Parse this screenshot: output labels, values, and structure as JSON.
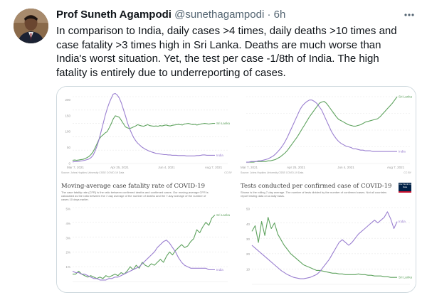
{
  "tweet": {
    "author_name": "Prof Suneth Agampodi",
    "handle": "@sunethagampodi",
    "separator": "·",
    "time": "6h",
    "more_icon": "more-horizontal-icon",
    "text": "In comparison to India, daily cases >4 times, daily deaths >10 times and case fatality >3 times high in Sri Lanka. Deaths are much worse than India's worst situation. Yet, the test per case -1/8th of India. The high fatality is entirely due to underreporting of cases."
  },
  "colors": {
    "sri_lanka": "#5fa35f",
    "india": "#9a7fd0",
    "grid": "#e8e8e8",
    "border": "#cfd9de",
    "secondary_text": "#536471"
  },
  "chart_data": [
    {
      "type": "line",
      "title": "",
      "x_ticks": [
        "Mar 7, 2021",
        "Apr 25, 2021",
        "Jun 4, 2021",
        "Aug 7, 2021"
      ],
      "y_ticks": [
        0,
        50,
        100,
        150,
        200
      ],
      "ylim": [
        0,
        210
      ],
      "source": "Source: Johns Hopkins University CSSE COVID-19 Data",
      "license": "CC BY",
      "grid": true,
      "series": [
        {
          "name": "Sri Lanka",
          "values": [
            10,
            11,
            10,
            11,
            12,
            13,
            15,
            18,
            22,
            28,
            36,
            48,
            62,
            76,
            85,
            90,
            96,
            100,
            112,
            125,
            140,
            150,
            148,
            145,
            135,
            125,
            115,
            112,
            110,
            112,
            115,
            118,
            122,
            120,
            118,
            117,
            120,
            122,
            119,
            118,
            117,
            118,
            117,
            119,
            118,
            120,
            121,
            119,
            118,
            120,
            121,
            122,
            123,
            122,
            121,
            124,
            125,
            126,
            124,
            122,
            123,
            121,
            122,
            124,
            125,
            126,
            125,
            124,
            125,
            126,
            126
          ]
        },
        {
          "name": "India",
          "values": [
            5,
            6,
            6,
            7,
            8,
            9,
            10,
            12,
            14,
            18,
            25,
            38,
            55,
            75,
            100,
            125,
            150,
            172,
            190,
            205,
            218,
            220,
            215,
            205,
            190,
            170,
            150,
            128,
            110,
            95,
            82,
            72,
            64,
            58,
            52,
            48,
            44,
            41,
            38,
            36,
            34,
            32,
            31,
            30,
            29,
            28,
            28,
            27,
            27,
            26,
            26,
            26,
            25,
            25,
            25,
            25,
            24,
            24,
            24,
            24,
            24,
            25,
            25,
            26,
            27,
            27,
            26,
            26,
            26,
            26,
            26
          ]
        }
      ]
    },
    {
      "type": "line",
      "title": "",
      "x_ticks": [
        "Mar 7, 2021",
        "Apr 25, 2021",
        "Jun 4, 2021",
        "Aug 7, 2021"
      ],
      "y_ticks": [],
      "ylim": [
        0,
        100
      ],
      "source": "Source: Johns Hopkins University CSSE COVID-19 Data",
      "license": "CC BY",
      "grid": true,
      "series": [
        {
          "name": "Sri Lanka",
          "values": [
            2,
            2,
            2,
            2,
            3,
            3,
            3,
            3,
            3,
            4,
            4,
            5,
            6,
            8,
            10,
            13,
            16,
            20,
            25,
            30,
            35,
            40,
            46,
            52,
            58,
            64,
            70,
            75,
            80,
            85,
            90,
            92,
            93,
            90,
            85,
            80,
            75,
            70,
            66,
            64,
            62,
            60,
            58,
            57,
            56,
            56,
            57,
            58,
            60,
            62,
            63,
            64,
            65,
            66,
            67,
            70,
            74,
            78,
            82,
            86,
            90,
            95,
            100
          ]
        },
        {
          "name": "India",
          "values": [
            2,
            2,
            3,
            3,
            3,
            4,
            4,
            5,
            6,
            7,
            9,
            11,
            14,
            18,
            22,
            27,
            33,
            40,
            48,
            56,
            64,
            72,
            80,
            86,
            90,
            93,
            95,
            95,
            93,
            90,
            85,
            80,
            72,
            64,
            56,
            48,
            42,
            37,
            33,
            30,
            28,
            26,
            25,
            24,
            22,
            22,
            21,
            20,
            20,
            19,
            19,
            19,
            18,
            18,
            18,
            18,
            18,
            18,
            18,
            18,
            18,
            18,
            18
          ]
        }
      ]
    },
    {
      "type": "line",
      "title": "Moving-average case fatality rate of COVID-19",
      "description": "The case fatality rate (CFR) is the ratio between confirmed deaths and confirmed cases. Our moving-average CFR is calculated as the ratio between the 7-day average of the number of deaths and the 7-day average of the number of cases 10 days earlier.",
      "x_ticks": [],
      "y_ticks": [
        "1%",
        "2%",
        "3%",
        "4%",
        "5%"
      ],
      "ylim": [
        0.5,
        5.5
      ],
      "source": "Source: Johns Hopkins University CSSE COVID-19 Data",
      "license": "CC BY",
      "grid": true,
      "series": [
        {
          "name": "Sri Lanka",
          "values": [
            1.0,
            1.0,
            1.2,
            1.0,
            0.9,
            0.8,
            0.9,
            0.8,
            0.7,
            0.8,
            0.7,
            0.9,
            0.8,
            0.9,
            1.0,
            0.9,
            1.1,
            1.0,
            1.2,
            1.5,
            1.3,
            1.6,
            1.4,
            1.8,
            1.6,
            1.5,
            1.7,
            1.6,
            1.8,
            2.0,
            1.8,
            2.2,
            2.5,
            2.3,
            2.6,
            2.8,
            3.0,
            2.8,
            2.9,
            3.2,
            3.4,
            4.0,
            3.8,
            4.2,
            4.5,
            4.3,
            4.8,
            5.0
          ]
        },
        {
          "name": "India",
          "values": [
            1.2,
            1.1,
            1.1,
            1.0,
            1.0,
            0.9,
            0.8,
            0.7,
            0.7,
            0.6,
            0.6,
            0.6,
            0.7,
            0.7,
            0.8,
            0.8,
            0.9,
            1.0,
            1.1,
            1.2,
            1.3,
            1.4,
            1.5,
            1.7,
            1.9,
            2.1,
            2.3,
            2.5,
            2.8,
            3.0,
            3.2,
            3.3,
            3.1,
            2.8,
            2.5,
            2.1,
            1.8,
            1.6,
            1.5,
            1.4,
            1.4,
            1.4,
            1.4,
            1.4,
            1.4,
            1.3,
            1.3,
            1.3
          ]
        }
      ]
    },
    {
      "type": "line",
      "title": "Tests conducted per confirmed case of COVID-19",
      "description": "Shown is the rolling 7-day average. The number of tests divided by the number of confirmed cases. Not all countries report testing data on a daily basis.",
      "x_ticks": [],
      "y_ticks": [
        "10",
        "20",
        "30",
        "40",
        "50"
      ],
      "ylim": [
        0,
        55
      ],
      "source": "Source: Official data collated by Our World in Data",
      "license": "CC BY",
      "grid": true,
      "series": [
        {
          "name": "Sri Lanka",
          "values": [
            38,
            42,
            30,
            45,
            35,
            48,
            40,
            44,
            36,
            32,
            28,
            25,
            22,
            20,
            18,
            16,
            14,
            13,
            12,
            11,
            10,
            10,
            9.5,
            9,
            8.5,
            8,
            8,
            7.5,
            7.5,
            7,
            7,
            7,
            7,
            7.5,
            7,
            7,
            6.5,
            6.5,
            6,
            6,
            6,
            5.5,
            5.5,
            5,
            5,
            5
          ]
        },
        {
          "name": "India",
          "values": [
            28,
            26,
            24,
            22,
            20,
            18,
            16,
            14,
            12,
            10,
            8.5,
            7,
            6,
            5,
            4.5,
            4,
            4,
            4.5,
            5,
            6,
            7,
            9,
            12,
            15,
            18,
            22,
            26,
            30,
            32,
            30,
            28,
            30,
            33,
            36,
            38,
            40,
            42,
            44,
            46,
            44,
            46,
            48,
            52,
            47,
            40,
            45
          ]
        }
      ],
      "logo_text": "Our World in Data"
    }
  ]
}
